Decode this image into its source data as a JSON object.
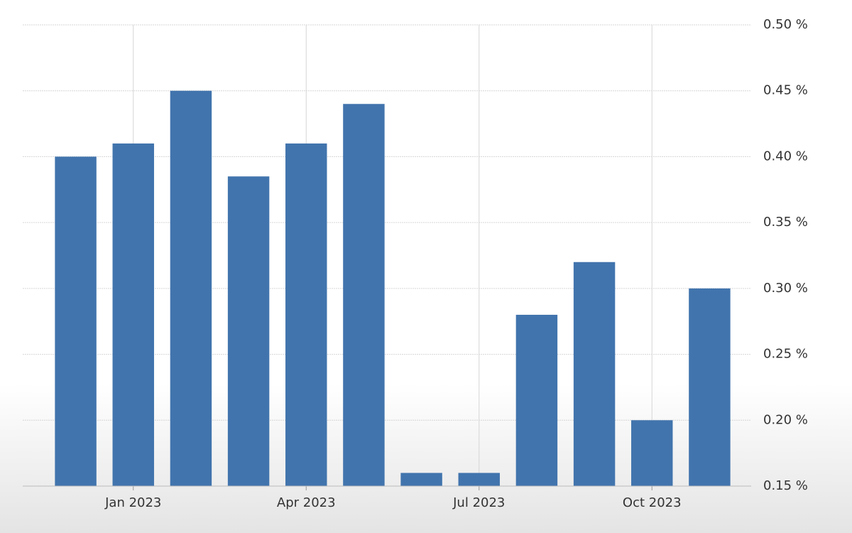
{
  "chart_data": {
    "type": "bar",
    "categories": [
      null,
      "Jan 2023",
      null,
      null,
      "Apr 2023",
      null,
      null,
      "Jul 2023",
      null,
      null,
      "Oct 2023",
      null
    ],
    "values": [
      0.4,
      0.41,
      0.45,
      0.385,
      0.41,
      0.44,
      0.16,
      0.16,
      0.28,
      0.32,
      0.2,
      0.3
    ],
    "color": "#4174ad",
    "ylim": [
      0.15,
      0.5
    ],
    "yticks": [
      {
        "value": 0.15,
        "label": "0.15 %"
      },
      {
        "value": 0.2,
        "label": "0.20 %"
      },
      {
        "value": 0.25,
        "label": "0.25 %"
      },
      {
        "value": 0.3,
        "label": "0.30 %"
      },
      {
        "value": 0.35,
        "label": "0.35 %"
      },
      {
        "value": 0.4,
        "label": "0.40 %"
      },
      {
        "value": 0.45,
        "label": "0.45 %"
      },
      {
        "value": 0.5,
        "label": "0.50 %"
      }
    ],
    "grid": true
  }
}
